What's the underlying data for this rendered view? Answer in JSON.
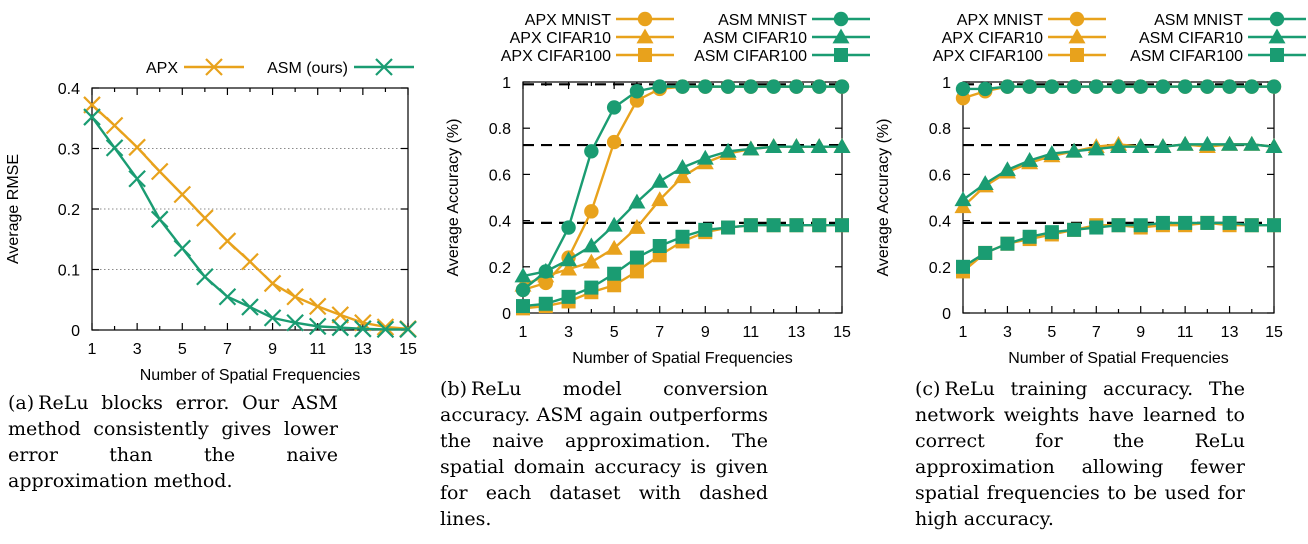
{
  "panels": [
    {
      "id": "a",
      "caption": {
        "label": "(a)",
        "text": "ReLu blocks error. Our ASM method consistently gives lower error than the naive approximation method."
      }
    },
    {
      "id": "b",
      "caption": {
        "label": "(b)",
        "text": "ReLu model conversion accuracy. ASM again outperforms the naive approximation. The spatial domain accuracy is given for each dataset with dashed lines."
      }
    },
    {
      "id": "c",
      "caption": {
        "label": "(c)",
        "text": "ReLu training accuracy. The network weights have learned to correct for the ReLu approximation allowing fewer spatial frequencies to be used for high accuracy."
      }
    }
  ],
  "colors": {
    "apx": "#e8a21c",
    "asm": "#1a9c72"
  },
  "chart_data": [
    {
      "type": "line",
      "xlabel": "Number of Spatial Frequencies",
      "ylabel": "Average RMSE",
      "xlim": [
        1,
        15
      ],
      "ylim": [
        0,
        0.4
      ],
      "xticks": [
        1,
        3,
        5,
        7,
        9,
        11,
        13,
        15
      ],
      "yticks": [
        0,
        0.1,
        0.2,
        0.3,
        0.4
      ],
      "ytick_labels": [
        "0",
        "0.1",
        "0.2",
        "0.3",
        "0.4"
      ],
      "legend_position": "top",
      "grid": "horizontal-dotted",
      "x": [
        1,
        2,
        3,
        4,
        5,
        6,
        7,
        8,
        9,
        10,
        11,
        12,
        13,
        14,
        15
      ],
      "series": [
        {
          "name": "APX",
          "color": "apx",
          "marker": "x",
          "values": [
            0.372,
            0.338,
            0.302,
            0.262,
            0.224,
            0.185,
            0.147,
            0.113,
            0.077,
            0.055,
            0.039,
            0.025,
            0.012,
            0.005,
            0.002
          ]
        },
        {
          "name": "ASM (ours)",
          "color": "asm",
          "marker": "x",
          "values": [
            0.352,
            0.301,
            0.25,
            0.183,
            0.135,
            0.088,
            0.055,
            0.038,
            0.02,
            0.012,
            0.006,
            0.004,
            0.002,
            0.001,
            0.001
          ]
        }
      ]
    },
    {
      "type": "line",
      "xlabel": "Number of Spatial Frequencies",
      "ylabel": "Average Accuracy (%)",
      "xlim": [
        1,
        15
      ],
      "ylim": [
        0,
        1
      ],
      "xticks": [
        1,
        3,
        5,
        7,
        9,
        11,
        13,
        15
      ],
      "yticks": [
        0,
        0.2,
        0.4,
        0.6,
        0.8,
        1
      ],
      "ytick_labels": [
        "0",
        "0.2",
        "0.4",
        "0.6",
        "0.8",
        "1"
      ],
      "legend_position": "top",
      "grid": "none",
      "reference_lines": [
        0.99,
        0.727,
        0.39
      ],
      "x": [
        1,
        2,
        3,
        4,
        5,
        6,
        7,
        8,
        9,
        10,
        11,
        12,
        13,
        14,
        15
      ],
      "series": [
        {
          "name": "APX MNIST",
          "color": "apx",
          "marker": "circle",
          "values": [
            0.1,
            0.13,
            0.24,
            0.44,
            0.74,
            0.92,
            0.97,
            0.98,
            0.98,
            0.98,
            0.98,
            0.98,
            0.98,
            0.98,
            0.98
          ]
        },
        {
          "name": "APX CIFAR10",
          "color": "apx",
          "marker": "triangle",
          "values": [
            0.12,
            0.16,
            0.19,
            0.22,
            0.28,
            0.37,
            0.49,
            0.59,
            0.65,
            0.69,
            0.71,
            0.72,
            0.72,
            0.72,
            0.72
          ]
        },
        {
          "name": "APX CIFAR100",
          "color": "apx",
          "marker": "square",
          "values": [
            0.02,
            0.03,
            0.05,
            0.09,
            0.12,
            0.18,
            0.25,
            0.31,
            0.35,
            0.37,
            0.38,
            0.38,
            0.38,
            0.38,
            0.38
          ]
        },
        {
          "name": "ASM MNIST",
          "color": "asm",
          "marker": "circle",
          "values": [
            0.1,
            0.18,
            0.37,
            0.7,
            0.89,
            0.96,
            0.98,
            0.98,
            0.98,
            0.98,
            0.98,
            0.98,
            0.98,
            0.98,
            0.98
          ]
        },
        {
          "name": "ASM CIFAR10",
          "color": "asm",
          "marker": "triangle",
          "values": [
            0.16,
            0.18,
            0.23,
            0.29,
            0.38,
            0.48,
            0.57,
            0.63,
            0.67,
            0.7,
            0.71,
            0.72,
            0.72,
            0.72,
            0.72
          ]
        },
        {
          "name": "ASM CIFAR100",
          "color": "asm",
          "marker": "square",
          "values": [
            0.03,
            0.04,
            0.07,
            0.11,
            0.17,
            0.24,
            0.29,
            0.33,
            0.36,
            0.37,
            0.38,
            0.38,
            0.38,
            0.38,
            0.38
          ]
        }
      ]
    },
    {
      "type": "line",
      "xlabel": "Number of Spatial Frequencies",
      "ylabel": "Average Accuracy (%)",
      "xlim": [
        1,
        15
      ],
      "ylim": [
        0,
        1
      ],
      "xticks": [
        1,
        3,
        5,
        7,
        9,
        11,
        13,
        15
      ],
      "yticks": [
        0,
        0.2,
        0.4,
        0.6,
        0.8,
        1
      ],
      "ytick_labels": [
        "0",
        "0.2",
        "0.4",
        "0.6",
        "0.8",
        "1"
      ],
      "legend_position": "top",
      "grid": "none",
      "reference_lines": [
        0.99,
        0.727,
        0.39
      ],
      "x": [
        1,
        2,
        3,
        4,
        5,
        6,
        7,
        8,
        9,
        10,
        11,
        12,
        13,
        14,
        15
      ],
      "series": [
        {
          "name": "APX MNIST",
          "color": "apx",
          "marker": "circle",
          "values": [
            0.93,
            0.96,
            0.98,
            0.98,
            0.98,
            0.98,
            0.98,
            0.98,
            0.98,
            0.98,
            0.98,
            0.98,
            0.98,
            0.98,
            0.98
          ]
        },
        {
          "name": "APX CIFAR10",
          "color": "apx",
          "marker": "triangle",
          "values": [
            0.46,
            0.55,
            0.61,
            0.65,
            0.68,
            0.7,
            0.72,
            0.73,
            0.72,
            0.72,
            0.73,
            0.72,
            0.73,
            0.73,
            0.72
          ]
        },
        {
          "name": "APX CIFAR100",
          "color": "apx",
          "marker": "square",
          "values": [
            0.18,
            0.26,
            0.3,
            0.32,
            0.34,
            0.36,
            0.38,
            0.38,
            0.37,
            0.38,
            0.38,
            0.39,
            0.38,
            0.38,
            0.38
          ]
        },
        {
          "name": "ASM MNIST",
          "color": "asm",
          "marker": "circle",
          "values": [
            0.97,
            0.97,
            0.98,
            0.98,
            0.98,
            0.98,
            0.98,
            0.98,
            0.98,
            0.98,
            0.98,
            0.98,
            0.98,
            0.98,
            0.98
          ]
        },
        {
          "name": "ASM CIFAR10",
          "color": "asm",
          "marker": "triangle",
          "values": [
            0.49,
            0.56,
            0.62,
            0.66,
            0.69,
            0.7,
            0.71,
            0.72,
            0.72,
            0.72,
            0.73,
            0.73,
            0.73,
            0.73,
            0.72
          ]
        },
        {
          "name": "ASM CIFAR100",
          "color": "asm",
          "marker": "square",
          "values": [
            0.2,
            0.26,
            0.3,
            0.33,
            0.35,
            0.36,
            0.37,
            0.38,
            0.38,
            0.39,
            0.39,
            0.39,
            0.39,
            0.38,
            0.38
          ]
        }
      ]
    }
  ]
}
